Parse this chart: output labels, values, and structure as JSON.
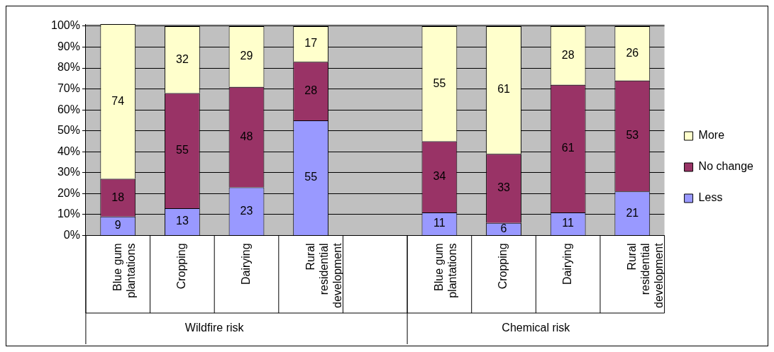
{
  "chart_data": {
    "type": "bar",
    "stacked": true,
    "categories": [
      "Blue gum plantations",
      "Cropping",
      "Dairying",
      "Rural residential development",
      null,
      "Blue gum plantations",
      "Cropping",
      "Dairying",
      "Rural residential development"
    ],
    "series": [
      {
        "name": "Less",
        "color": "#9999ff",
        "values": [
          9,
          13,
          23,
          55,
          null,
          11,
          6,
          11,
          21
        ]
      },
      {
        "name": "No change",
        "color": "#993366",
        "values": [
          18,
          55,
          48,
          28,
          null,
          34,
          33,
          61,
          53
        ]
      },
      {
        "name": "More",
        "color": "#ffffcc",
        "values": [
          74,
          32,
          29,
          17,
          null,
          55,
          61,
          28,
          26
        ]
      }
    ],
    "annotations": [
      "Wildfire risk",
      "Chemical risk"
    ],
    "ylim": [
      0,
      101
    ],
    "yticks": [
      {
        "value": 0,
        "label": "0%"
      },
      {
        "value": 10,
        "label": "10%"
      },
      {
        "value": 20,
        "label": "20%"
      },
      {
        "value": 30,
        "label": "30%"
      },
      {
        "value": 40,
        "label": "40%"
      },
      {
        "value": 50,
        "label": "50%"
      },
      {
        "value": 60,
        "label": "60%"
      },
      {
        "value": 70,
        "label": "70%"
      },
      {
        "value": 80,
        "label": "80%"
      },
      {
        "value": 90,
        "label": "90%"
      },
      {
        "value": 100,
        "label": "100%"
      }
    ],
    "grid": "y",
    "legend": "right",
    "data_labels": true
  }
}
